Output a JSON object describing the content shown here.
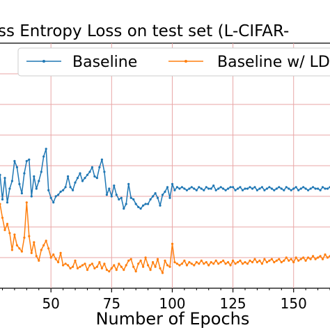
{
  "chart_data": {
    "type": "line",
    "title": "ss Entropy Loss on test set (L-CIFAR-",
    "xlabel": "Number of Epochs",
    "ylabel": "",
    "xlim": [
      29,
      165
    ],
    "ylim": [
      0,
      16
    ],
    "x_ticks": [
      "50",
      "75",
      "100",
      "125",
      "150"
    ],
    "grid": true,
    "legend_placement": "top",
    "colors": {
      "baseline": "#1f77b4",
      "ld": "#ff7f0e",
      "grid": "#e8a6a6"
    },
    "series": [
      {
        "name": "Baseline",
        "x": [
          29,
          30,
          31,
          32,
          33,
          34,
          35,
          36,
          37,
          38,
          39,
          40,
          41,
          42,
          43,
          44,
          45,
          46,
          47,
          48,
          49,
          50,
          51,
          52,
          53,
          54,
          55,
          56,
          57,
          58,
          59,
          60,
          61,
          62,
          63,
          64,
          65,
          66,
          67,
          68,
          69,
          70,
          71,
          72,
          73,
          74,
          75,
          76,
          77,
          78,
          79,
          80,
          81,
          82,
          83,
          84,
          85,
          86,
          87,
          88,
          89,
          90,
          91,
          92,
          93,
          94,
          95,
          96,
          97,
          98,
          99,
          100,
          101,
          102,
          103,
          104,
          105,
          106,
          107,
          108,
          109,
          110,
          111,
          112,
          113,
          114,
          115,
          116,
          117,
          118,
          119,
          120,
          121,
          122,
          123,
          124,
          125,
          126,
          127,
          128,
          129,
          130,
          131,
          132,
          133,
          134,
          135,
          136,
          137,
          138,
          139,
          140,
          141,
          142,
          143,
          144,
          145,
          146,
          147,
          148,
          149,
          150,
          151,
          152,
          153,
          154,
          155,
          156,
          157,
          158,
          159,
          160,
          161,
          162,
          163,
          164,
          165
        ],
        "values": [
          7.4,
          5.8,
          7.2,
          5.6,
          6.5,
          7.0,
          8.3,
          7.9,
          6.8,
          6.2,
          7.5,
          8.3,
          8.4,
          6.0,
          7.3,
          6.5,
          7.0,
          7.6,
          8.6,
          9.1,
          6.4,
          5.9,
          5.6,
          6.0,
          6.1,
          6.3,
          6.4,
          6.6,
          7.3,
          6.6,
          6.4,
          6.9,
          7.2,
          7.5,
          7.0,
          7.2,
          7.4,
          7.6,
          7.9,
          7.3,
          7.2,
          7.9,
          8.4,
          7.6,
          6.1,
          6.5,
          6.0,
          6.7,
          6.1,
          5.8,
          5.9,
          5.2,
          5.5,
          6.8,
          5.9,
          5.8,
          5.5,
          5.3,
          5.2,
          5.4,
          5.5,
          5.5,
          5.8,
          6.0,
          6.2,
          5.9,
          5.4,
          6.1,
          6.3,
          6.6,
          5.9,
          6.8,
          6.4,
          6.6,
          6.5,
          6.6,
          6.5,
          6.4,
          6.5,
          6.6,
          6.5,
          6.4,
          6.6,
          6.5,
          6.4,
          6.6,
          6.5,
          6.5,
          6.7,
          6.4,
          6.5,
          6.6,
          6.5,
          6.4,
          6.5,
          6.6,
          6.6,
          6.4,
          6.5,
          6.6,
          6.4,
          6.5,
          6.5,
          6.6,
          6.5,
          6.6,
          6.4,
          6.5,
          6.6,
          6.4,
          6.5,
          6.6,
          6.5,
          6.4,
          6.5,
          6.6,
          6.5,
          6.4,
          6.6,
          6.5,
          6.4,
          6.5,
          6.6,
          6.4,
          6.5,
          6.6,
          6.5,
          6.4,
          6.5,
          6.6,
          6.5,
          6.5,
          6.4,
          6.6,
          6.5,
          6.5,
          6.6
        ]
      },
      {
        "name": "Baseline w/ LD",
        "x": [
          29,
          30,
          31,
          32,
          33,
          34,
          35,
          36,
          37,
          38,
          39,
          40,
          41,
          42,
          43,
          44,
          45,
          46,
          47,
          48,
          49,
          50,
          51,
          52,
          53,
          54,
          55,
          56,
          57,
          58,
          59,
          60,
          61,
          62,
          63,
          64,
          65,
          66,
          67,
          68,
          69,
          70,
          71,
          72,
          73,
          74,
          75,
          76,
          77,
          78,
          79,
          80,
          81,
          82,
          83,
          84,
          85,
          86,
          87,
          88,
          89,
          90,
          91,
          92,
          93,
          94,
          95,
          96,
          97,
          98,
          99,
          100,
          101,
          102,
          103,
          104,
          105,
          106,
          107,
          108,
          109,
          110,
          111,
          112,
          113,
          114,
          115,
          116,
          117,
          118,
          119,
          120,
          121,
          122,
          123,
          124,
          125,
          126,
          127,
          128,
          129,
          130,
          131,
          132,
          133,
          134,
          135,
          136,
          137,
          138,
          139,
          140,
          141,
          142,
          143,
          144,
          145,
          146,
          147,
          148,
          149,
          150,
          151,
          152,
          153,
          154,
          155,
          156,
          157,
          158,
          159,
          160,
          161,
          162,
          163,
          164,
          165
        ],
        "values": [
          5.5,
          4.6,
          3.8,
          4.2,
          3.6,
          2.5,
          3.5,
          2.8,
          2.6,
          2.4,
          3.3,
          5.6,
          3.4,
          2.3,
          3.0,
          2.1,
          1.8,
          2.5,
          2.8,
          3.1,
          2.6,
          2.0,
          2.2,
          1.9,
          1.7,
          2.3,
          1.5,
          1.6,
          1.5,
          1.3,
          1.4,
          1.8,
          1.3,
          1.4,
          1.5,
          1.6,
          1.2,
          1.5,
          1.6,
          1.3,
          1.4,
          1.7,
          1.3,
          1.6,
          1.2,
          1.1,
          1.3,
          1.5,
          1.2,
          1.6,
          1.4,
          1.2,
          1.5,
          1.8,
          1.9,
          1.4,
          1.1,
          1.6,
          1.8,
          1.4,
          2.0,
          1.5,
          1.2,
          1.7,
          1.4,
          1.9,
          1.3,
          1.0,
          1.8,
          1.5,
          1.4,
          2.9,
          1.7,
          1.6,
          1.5,
          1.6,
          1.8,
          1.5,
          1.7,
          1.6,
          1.5,
          1.7,
          1.6,
          1.8,
          1.6,
          1.7,
          1.5,
          1.7,
          1.6,
          1.8,
          1.6,
          1.7,
          1.8,
          1.6,
          1.7,
          1.5,
          1.8,
          1.6,
          1.7,
          1.8,
          1.6,
          1.7,
          1.6,
          1.8,
          1.7,
          1.9,
          1.7,
          1.8,
          1.6,
          1.9,
          1.7,
          1.8,
          1.9,
          1.7,
          1.8,
          1.9,
          1.7,
          1.8,
          2.0,
          1.8,
          1.9,
          1.7,
          2.0,
          1.8,
          1.9,
          2.0,
          1.8,
          2.0,
          1.9,
          2.1,
          1.9,
          2.0,
          2.1,
          1.9,
          2.2,
          2.0,
          2.1
        ]
      }
    ]
  }
}
